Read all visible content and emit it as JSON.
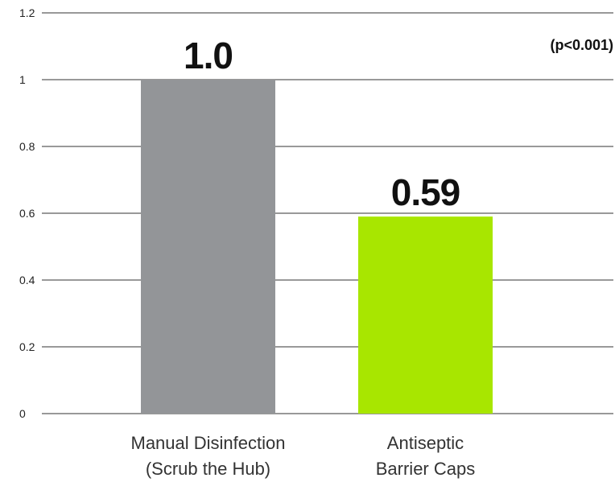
{
  "chart_data": {
    "type": "bar",
    "categories": [
      [
        "Manual Disinfection",
        "(Scrub the Hub)"
      ],
      [
        "Antiseptic",
        "Barrier Caps"
      ]
    ],
    "values": [
      1.0,
      0.59
    ],
    "data_labels": [
      "1.0",
      "0.59"
    ],
    "colors": [
      "#939598",
      "#a8e600"
    ],
    "ylim": [
      0,
      1.2
    ],
    "yticks": [
      "0",
      "0.2",
      "0.4",
      "0.6",
      "0.8",
      "1",
      "1.2"
    ],
    "grid": true,
    "annotation": "(p<0.001)"
  }
}
